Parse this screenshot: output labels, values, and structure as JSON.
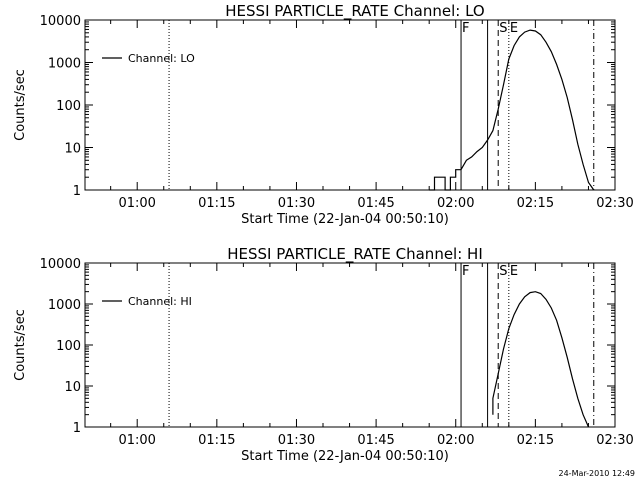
{
  "chart_data": [
    {
      "type": "line",
      "title": "HESSI PARTICLE_RATE Channel: LO",
      "xlabel": "Start Time (22-Jan-04 00:50:10)",
      "ylabel": "Counts/sec",
      "yscale": "log",
      "ylim": [
        1,
        10000
      ],
      "xlim": [
        "00:50:10",
        "02:30:00"
      ],
      "x_ticks": [
        "01:00",
        "01:15",
        "01:30",
        "01:45",
        "02:00",
        "02:15",
        "02:30"
      ],
      "y_ticks": [
        "1",
        "10",
        "100",
        "1000",
        "10000"
      ],
      "legend": {
        "label": "Channel: LO",
        "position": "top-left"
      },
      "markers": [
        {
          "time": "01:06",
          "style": "dotted",
          "label": ""
        },
        {
          "time": "02:01",
          "style": "solid",
          "label": "F"
        },
        {
          "time": "02:06",
          "style": "solid",
          "label": ""
        },
        {
          "time": "02:08",
          "style": "dashed",
          "label": "S"
        },
        {
          "time": "02:10",
          "style": "dotted",
          "label": "E"
        },
        {
          "time": "02:26",
          "style": "dashdot",
          "label": ""
        }
      ],
      "series": [
        {
          "name": "Channel: LO",
          "x": [
            "01:55",
            "01:56",
            "01:56",
            "01:58",
            "01:58",
            "01:59",
            "01:59",
            "02:00",
            "02:00",
            "02:01",
            "02:02",
            "02:03",
            "02:04",
            "02:05",
            "02:06",
            "02:07",
            "02:08",
            "02:09",
            "02:10",
            "02:11",
            "02:12",
            "02:13",
            "02:14",
            "02:15",
            "02:16",
            "02:17",
            "02:18",
            "02:19",
            "02:20",
            "02:21",
            "02:22",
            "02:23",
            "02:24",
            "02:25",
            "02:26"
          ],
          "y": [
            1,
            1,
            2,
            2,
            1,
            1,
            2,
            2,
            3,
            3,
            5,
            6,
            8,
            10,
            15,
            25,
            80,
            300,
            1200,
            2500,
            4000,
            5200,
            5800,
            5500,
            4500,
            3000,
            1800,
            900,
            400,
            150,
            45,
            12,
            4,
            1.5,
            1
          ]
        }
      ]
    },
    {
      "type": "line",
      "title": "HESSI PARTICLE_RATE Channel: HI",
      "xlabel": "Start Time (22-Jan-04 00:50:10)",
      "ylabel": "Counts/sec",
      "yscale": "log",
      "ylim": [
        1,
        10000
      ],
      "xlim": [
        "00:50:10",
        "02:30:00"
      ],
      "x_ticks": [
        "01:00",
        "01:15",
        "01:30",
        "01:45",
        "02:00",
        "02:15",
        "02:30"
      ],
      "y_ticks": [
        "1",
        "10",
        "100",
        "1000",
        "10000"
      ],
      "legend": {
        "label": "Channel: HI",
        "position": "top-left"
      },
      "markers": [
        {
          "time": "01:06",
          "style": "dotted",
          "label": ""
        },
        {
          "time": "02:01",
          "style": "solid",
          "label": "F"
        },
        {
          "time": "02:06",
          "style": "solid",
          "label": ""
        },
        {
          "time": "02:08",
          "style": "dashed",
          "label": "S"
        },
        {
          "time": "02:10",
          "style": "dotted",
          "label": "E"
        },
        {
          "time": "02:26",
          "style": "dashdot",
          "label": ""
        }
      ],
      "series": [
        {
          "name": "Channel: HI",
          "x": [
            "02:07",
            "02:07",
            "02:08",
            "02:09",
            "02:10",
            "02:11",
            "02:12",
            "02:13",
            "02:14",
            "02:15",
            "02:16",
            "02:17",
            "02:18",
            "02:19",
            "02:20",
            "02:21",
            "02:22",
            "02:23",
            "02:24",
            "02:25"
          ],
          "y": [
            2,
            5,
            20,
            80,
            250,
            550,
            1000,
            1500,
            1900,
            2000,
            1800,
            1300,
            800,
            400,
            150,
            50,
            15,
            5,
            2,
            1
          ]
        }
      ]
    }
  ],
  "footer": {
    "timestamp": "24-Mar-2010 12:49"
  }
}
